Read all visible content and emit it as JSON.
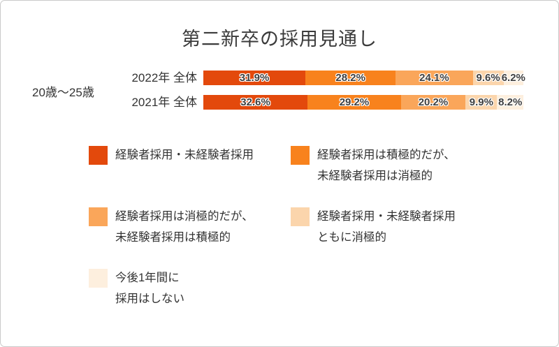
{
  "title": "第二新卒の採用見通し",
  "card": {
    "background": "#ffffff",
    "border_color": "#c9c9c9"
  },
  "text_colors": {
    "title": "#3b3b3b",
    "labels": "#333333",
    "bar_values": "#3f3f3f"
  },
  "chart_data": {
    "type": "bar",
    "orientation": "horizontal",
    "stacked": true,
    "title": "第二新卒の採用見通し",
    "group_label": "20歳〜25歳",
    "categories": [
      "2022年 全体",
      "2021年 全体"
    ],
    "series": [
      {
        "name": "経験者採用・未経験者採用",
        "color": "#E3490C",
        "values": [
          31.9,
          32.6
        ],
        "legend_lines": [
          "経験者採用・未経験者採用"
        ]
      },
      {
        "name": "経験者採用は積極的だが、未経験者採用は消極的",
        "color": "#F8821D",
        "values": [
          28.2,
          29.2
        ],
        "legend_lines": [
          "経験者採用は積極的だが、",
          "未経験者採用は消極的"
        ]
      },
      {
        "name": "経験者採用は消極的だが、未経験者採用は積極的",
        "color": "#FAA65A",
        "values": [
          24.1,
          20.2
        ],
        "legend_lines": [
          "経験者採用は消極的だが、",
          "未経験者採用は積極的"
        ]
      },
      {
        "name": "経験者採用・未経験者採用ともに消極的",
        "color": "#FBD5AC",
        "values": [
          9.6,
          9.9
        ],
        "legend_lines": [
          "経験者採用・未経験者採用",
          "ともに消極的"
        ]
      },
      {
        "name": "今後1年間に採用はしない",
        "color": "#FDEFDE",
        "values": [
          6.2,
          8.2
        ],
        "legend_lines": [
          "今後1年間に",
          "採用はしない"
        ]
      }
    ],
    "value_suffix": "%",
    "xlim": [
      0,
      100
    ],
    "grid": false,
    "legend_position": "bottom"
  }
}
